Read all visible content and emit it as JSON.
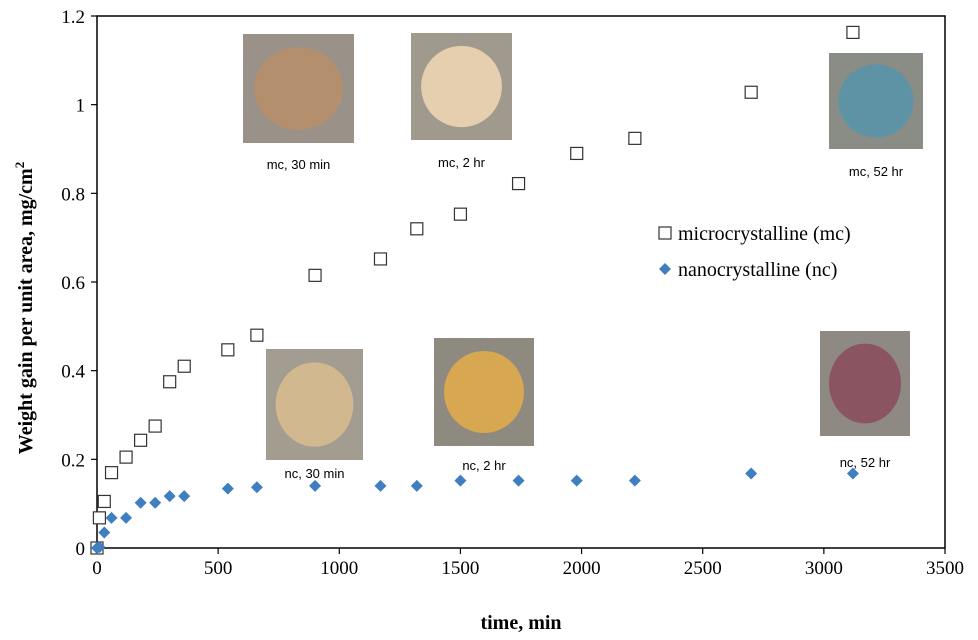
{
  "chart_data": {
    "type": "scatter",
    "title": "",
    "xlabel": "time, min",
    "ylabel": "Weight gain per unit area, mg/cm",
    "ylabel_superscript": "2",
    "xlim": [
      0,
      3500
    ],
    "ylim": [
      0,
      1.2
    ],
    "xticks": [
      "0",
      "500",
      "1000",
      "1500",
      "2000",
      "2500",
      "3000",
      "3500"
    ],
    "yticks": [
      "0",
      "0.2",
      "0.4",
      "0.6",
      "0.8",
      "1",
      "1.2"
    ],
    "grid": false,
    "legend_position": "right",
    "series": [
      {
        "name": "microcrystalline (mc)",
        "marker": "open-square",
        "color": "#333333",
        "points": [
          [
            0,
            0
          ],
          [
            10,
            0.068
          ],
          [
            30,
            0.105
          ],
          [
            60,
            0.17
          ],
          [
            120,
            0.205
          ],
          [
            180,
            0.243
          ],
          [
            240,
            0.275
          ],
          [
            300,
            0.375
          ],
          [
            360,
            0.41
          ],
          [
            540,
            0.447
          ],
          [
            660,
            0.48
          ],
          [
            900,
            0.615
          ],
          [
            1170,
            0.652
          ],
          [
            1320,
            0.72
          ],
          [
            1500,
            0.753
          ],
          [
            1740,
            0.822
          ],
          [
            1980,
            0.89
          ],
          [
            2220,
            0.924
          ],
          [
            2700,
            1.028
          ],
          [
            3120,
            1.163
          ]
        ]
      },
      {
        "name": "nanocrystalline (nc)",
        "marker": "filled-diamond",
        "color": "#3f7fc0",
        "points": [
          [
            0,
            0
          ],
          [
            10,
            0.002
          ],
          [
            30,
            0.035
          ],
          [
            60,
            0.068
          ],
          [
            120,
            0.068
          ],
          [
            180,
            0.102
          ],
          [
            240,
            0.102
          ],
          [
            300,
            0.117
          ],
          [
            360,
            0.117
          ],
          [
            540,
            0.134
          ],
          [
            660,
            0.137
          ],
          [
            900,
            0.14
          ],
          [
            1170,
            0.14
          ],
          [
            1320,
            0.14
          ],
          [
            1500,
            0.152
          ],
          [
            1740,
            0.152
          ],
          [
            1980,
            0.152
          ],
          [
            2220,
            0.152
          ],
          [
            2700,
            0.168
          ],
          [
            3120,
            0.168
          ]
        ]
      }
    ],
    "inset_photos": [
      {
        "caption": "mc, 30 min",
        "bg": "#9a9288",
        "disc": "#b48f6e"
      },
      {
        "caption": "mc, 2 hr",
        "bg": "#a09a8e",
        "disc": "#e6cfae"
      },
      {
        "caption": "mc, 52 hr",
        "bg": "#8a8c86",
        "disc": "#5e93a6"
      },
      {
        "caption": "nc, 30 min",
        "bg": "#a39d91",
        "disc": "#d2b88f"
      },
      {
        "caption": "nc, 2 hr",
        "bg": "#8f8a80",
        "disc": "#d7a752"
      },
      {
        "caption": "nc, 52 hr",
        "bg": "#8f8983",
        "disc": "#8a5460"
      }
    ]
  }
}
